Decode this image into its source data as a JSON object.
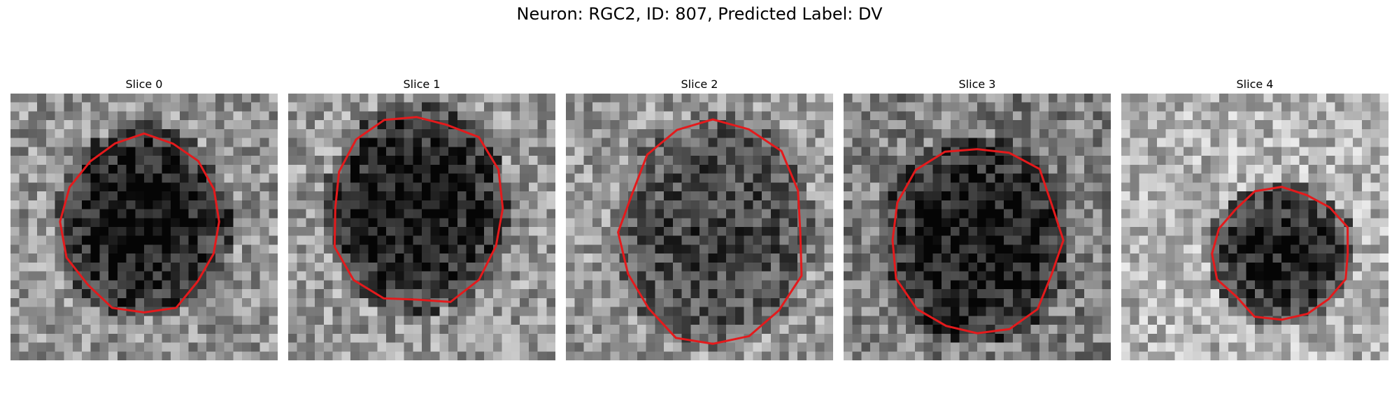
{
  "figure": {
    "suptitle": "Neuron: RGC2, ID: 807, Predicted Label: DV",
    "contour_color": "#e41a1c",
    "grid_size": 30
  },
  "panels": [
    {
      "title": "Slice 0",
      "brightness": 0.58,
      "dark_strength": 0.55,
      "blob": [
        0.5,
        0.48,
        0.33,
        0.37
      ],
      "seed": 11
    },
    {
      "title": "Slice 1",
      "brightness": 0.6,
      "dark_strength": 0.55,
      "blob": [
        0.48,
        0.43,
        0.35,
        0.4
      ],
      "seed": 23
    },
    {
      "title": "Slice 2",
      "brightness": 0.6,
      "dark_strength": 0.35,
      "blob": [
        0.55,
        0.52,
        0.38,
        0.45
      ],
      "seed": 37
    },
    {
      "title": "Slice 3",
      "brightness": 0.5,
      "dark_strength": 0.45,
      "blob": [
        0.5,
        0.55,
        0.35,
        0.4
      ],
      "seed": 41
    },
    {
      "title": "Slice 4",
      "brightness": 0.7,
      "dark_strength": 0.6,
      "blob": [
        0.6,
        0.6,
        0.28,
        0.27
      ],
      "seed": 53
    }
  ]
}
